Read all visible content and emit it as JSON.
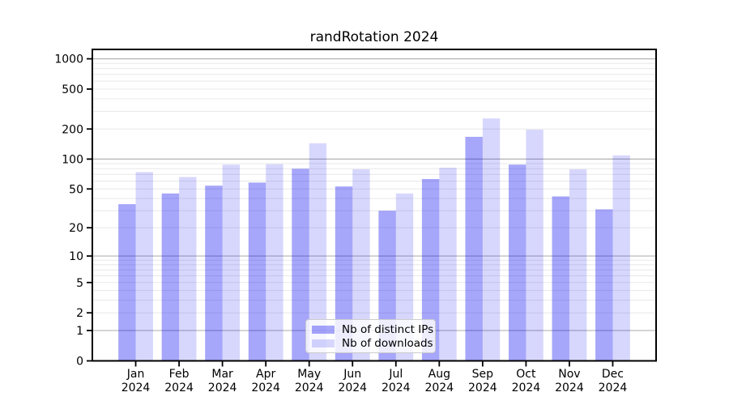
{
  "chart_data": {
    "type": "bar",
    "title": "randRotation 2024",
    "categories": [
      "Jan 2024",
      "Feb 2024",
      "Mar 2024",
      "Apr 2024",
      "May 2024",
      "Jun 2024",
      "Jul 2024",
      "Aug 2024",
      "Sep 2024",
      "Oct 2024",
      "Nov 2024",
      "Dec 2024"
    ],
    "months": [
      "Jan",
      "Feb",
      "Mar",
      "Apr",
      "May",
      "Jun",
      "Jul",
      "Aug",
      "Sep",
      "Oct",
      "Nov",
      "Dec"
    ],
    "year": "2024",
    "series": [
      {
        "name": "Nb of distinct IPs",
        "values": [
          35,
          45,
          54,
          58,
          80,
          53,
          30,
          63,
          167,
          88,
          42,
          31
        ]
      },
      {
        "name": "Nb of downloads",
        "values": [
          74,
          66,
          88,
          89,
          144,
          79,
          45,
          82,
          255,
          197,
          79,
          109
        ]
      }
    ],
    "yscale": "log1p",
    "yticks": [
      0,
      1,
      2,
      5,
      10,
      20,
      50,
      100,
      200,
      500,
      1000
    ],
    "ylim": [
      0,
      1240
    ],
    "grid": true,
    "legend_position": "lower center",
    "colors": {
      "distinct_ips": "rgba(0,0,240,0.35)",
      "downloads": "rgba(0,0,240,0.155)",
      "distinct_ips_hex": "#a6a6fa",
      "downloads_hex": "#d7d7fc",
      "grid_major": "#b3b3b3",
      "grid_minor": "#e8e8e8",
      "axis": "#000000"
    }
  }
}
